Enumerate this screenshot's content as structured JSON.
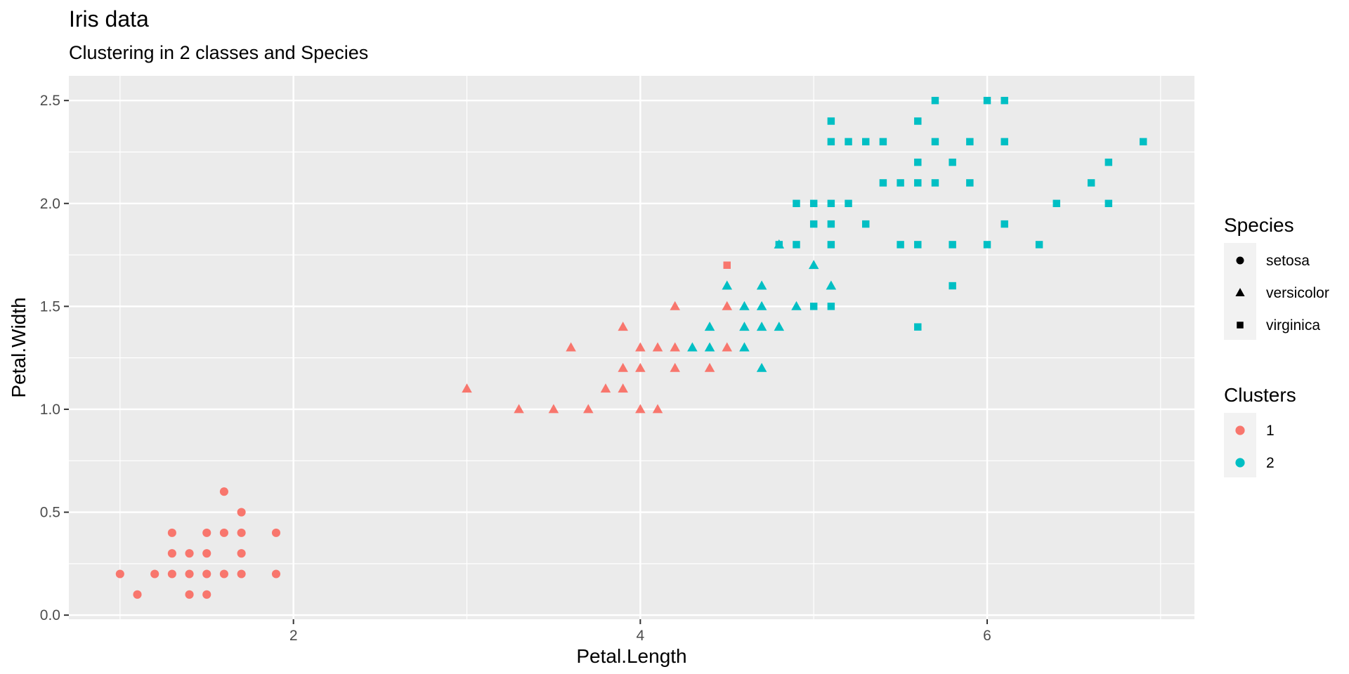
{
  "chart_data": {
    "type": "scatter",
    "title": "Iris data",
    "subtitle": "Clustering in 2 classes and Species",
    "xlabel": "Petal.Length",
    "ylabel": "Petal.Width",
    "xlim": [
      0.705,
      7.195
    ],
    "ylim": [
      -0.02,
      2.62
    ],
    "x_ticks": [
      2,
      4,
      6
    ],
    "x_tick_labels": [
      "2",
      "4",
      "6"
    ],
    "y_ticks": [
      0.0,
      0.5,
      1.0,
      1.5,
      2.0,
      2.5
    ],
    "y_tick_labels": [
      "0.0",
      "0.5",
      "1.0",
      "1.5",
      "2.0",
      "2.5"
    ],
    "grid": true,
    "legend_position": "right",
    "legends": [
      {
        "title": "Species",
        "kind": "shape",
        "entries": [
          {
            "label": "setosa",
            "shape": "circle"
          },
          {
            "label": "versicolor",
            "shape": "triangle"
          },
          {
            "label": "virginica",
            "shape": "square"
          }
        ]
      },
      {
        "title": "Clusters",
        "kind": "color",
        "entries": [
          {
            "label": "1",
            "color": "#F8766D"
          },
          {
            "label": "2",
            "color": "#00BFC4"
          }
        ]
      }
    ],
    "colors": {
      "1": "#F8766D",
      "2": "#00BFC4"
    },
    "point_fields": [
      "x",
      "y",
      "species",
      "cluster"
    ],
    "points": [
      [
        1.0,
        0.2,
        "setosa",
        "1"
      ],
      [
        1.1,
        0.1,
        "setosa",
        "1"
      ],
      [
        1.2,
        0.2,
        "setosa",
        "1"
      ],
      [
        1.3,
        0.2,
        "setosa",
        "1"
      ],
      [
        1.3,
        0.3,
        "setosa",
        "1"
      ],
      [
        1.3,
        0.4,
        "setosa",
        "1"
      ],
      [
        1.4,
        0.1,
        "setosa",
        "1"
      ],
      [
        1.4,
        0.2,
        "setosa",
        "1"
      ],
      [
        1.4,
        0.3,
        "setosa",
        "1"
      ],
      [
        1.5,
        0.1,
        "setosa",
        "1"
      ],
      [
        1.5,
        0.2,
        "setosa",
        "1"
      ],
      [
        1.5,
        0.3,
        "setosa",
        "1"
      ],
      [
        1.5,
        0.4,
        "setosa",
        "1"
      ],
      [
        1.6,
        0.2,
        "setosa",
        "1"
      ],
      [
        1.6,
        0.4,
        "setosa",
        "1"
      ],
      [
        1.6,
        0.6,
        "setosa",
        "1"
      ],
      [
        1.7,
        0.2,
        "setosa",
        "1"
      ],
      [
        1.7,
        0.3,
        "setosa",
        "1"
      ],
      [
        1.7,
        0.4,
        "setosa",
        "1"
      ],
      [
        1.7,
        0.5,
        "setosa",
        "1"
      ],
      [
        1.9,
        0.2,
        "setosa",
        "1"
      ],
      [
        1.9,
        0.4,
        "setosa",
        "1"
      ],
      [
        3.0,
        1.1,
        "versicolor",
        "1"
      ],
      [
        3.3,
        1.0,
        "versicolor",
        "1"
      ],
      [
        3.5,
        1.0,
        "versicolor",
        "1"
      ],
      [
        3.6,
        1.3,
        "versicolor",
        "1"
      ],
      [
        3.7,
        1.0,
        "versicolor",
        "1"
      ],
      [
        3.8,
        1.1,
        "versicolor",
        "1"
      ],
      [
        3.9,
        1.1,
        "versicolor",
        "1"
      ],
      [
        3.9,
        1.2,
        "versicolor",
        "1"
      ],
      [
        3.9,
        1.4,
        "versicolor",
        "1"
      ],
      [
        4.0,
        1.0,
        "versicolor",
        "1"
      ],
      [
        4.0,
        1.2,
        "versicolor",
        "1"
      ],
      [
        4.0,
        1.3,
        "versicolor",
        "1"
      ],
      [
        4.1,
        1.0,
        "versicolor",
        "1"
      ],
      [
        4.1,
        1.3,
        "versicolor",
        "1"
      ],
      [
        4.2,
        1.2,
        "versicolor",
        "1"
      ],
      [
        4.2,
        1.3,
        "versicolor",
        "1"
      ],
      [
        4.2,
        1.5,
        "versicolor",
        "1"
      ],
      [
        4.4,
        1.2,
        "versicolor",
        "1"
      ],
      [
        4.5,
        1.3,
        "versicolor",
        "1"
      ],
      [
        4.5,
        1.5,
        "versicolor",
        "1"
      ],
      [
        4.3,
        1.3,
        "versicolor",
        "2"
      ],
      [
        4.4,
        1.3,
        "versicolor",
        "2"
      ],
      [
        4.4,
        1.4,
        "versicolor",
        "2"
      ],
      [
        4.5,
        1.6,
        "versicolor",
        "2"
      ],
      [
        4.6,
        1.3,
        "versicolor",
        "2"
      ],
      [
        4.6,
        1.4,
        "versicolor",
        "2"
      ],
      [
        4.6,
        1.5,
        "versicolor",
        "2"
      ],
      [
        4.7,
        1.2,
        "versicolor",
        "2"
      ],
      [
        4.7,
        1.4,
        "versicolor",
        "2"
      ],
      [
        4.7,
        1.5,
        "versicolor",
        "2"
      ],
      [
        4.7,
        1.6,
        "versicolor",
        "2"
      ],
      [
        4.8,
        1.4,
        "versicolor",
        "2"
      ],
      [
        4.8,
        1.8,
        "versicolor",
        "2"
      ],
      [
        4.9,
        1.5,
        "versicolor",
        "2"
      ],
      [
        5.0,
        1.7,
        "versicolor",
        "2"
      ],
      [
        5.1,
        1.6,
        "versicolor",
        "2"
      ],
      [
        4.5,
        1.7,
        "virginica",
        "1"
      ],
      [
        4.8,
        1.8,
        "virginica",
        "2"
      ],
      [
        4.9,
        1.8,
        "virginica",
        "2"
      ],
      [
        4.9,
        2.0,
        "virginica",
        "2"
      ],
      [
        5.0,
        1.5,
        "virginica",
        "2"
      ],
      [
        5.0,
        1.9,
        "virginica",
        "2"
      ],
      [
        5.0,
        2.0,
        "virginica",
        "2"
      ],
      [
        5.1,
        1.5,
        "virginica",
        "2"
      ],
      [
        5.1,
        1.8,
        "virginica",
        "2"
      ],
      [
        5.1,
        1.9,
        "virginica",
        "2"
      ],
      [
        5.1,
        2.0,
        "virginica",
        "2"
      ],
      [
        5.1,
        2.3,
        "virginica",
        "2"
      ],
      [
        5.1,
        2.4,
        "virginica",
        "2"
      ],
      [
        5.2,
        2.0,
        "virginica",
        "2"
      ],
      [
        5.2,
        2.3,
        "virginica",
        "2"
      ],
      [
        5.3,
        1.9,
        "virginica",
        "2"
      ],
      [
        5.3,
        2.3,
        "virginica",
        "2"
      ],
      [
        5.4,
        2.1,
        "virginica",
        "2"
      ],
      [
        5.4,
        2.3,
        "virginica",
        "2"
      ],
      [
        5.5,
        1.8,
        "virginica",
        "2"
      ],
      [
        5.5,
        2.1,
        "virginica",
        "2"
      ],
      [
        5.6,
        1.4,
        "virginica",
        "2"
      ],
      [
        5.6,
        1.8,
        "virginica",
        "2"
      ],
      [
        5.6,
        2.1,
        "virginica",
        "2"
      ],
      [
        5.6,
        2.2,
        "virginica",
        "2"
      ],
      [
        5.6,
        2.4,
        "virginica",
        "2"
      ],
      [
        5.7,
        2.1,
        "virginica",
        "2"
      ],
      [
        5.7,
        2.3,
        "virginica",
        "2"
      ],
      [
        5.7,
        2.5,
        "virginica",
        "2"
      ],
      [
        5.8,
        1.6,
        "virginica",
        "2"
      ],
      [
        5.8,
        1.8,
        "virginica",
        "2"
      ],
      [
        5.8,
        2.2,
        "virginica",
        "2"
      ],
      [
        5.9,
        2.1,
        "virginica",
        "2"
      ],
      [
        5.9,
        2.3,
        "virginica",
        "2"
      ],
      [
        6.0,
        1.8,
        "virginica",
        "2"
      ],
      [
        6.0,
        2.5,
        "virginica",
        "2"
      ],
      [
        6.1,
        1.9,
        "virginica",
        "2"
      ],
      [
        6.1,
        2.3,
        "virginica",
        "2"
      ],
      [
        6.1,
        2.5,
        "virginica",
        "2"
      ],
      [
        6.3,
        1.8,
        "virginica",
        "2"
      ],
      [
        6.4,
        2.0,
        "virginica",
        "2"
      ],
      [
        6.6,
        2.1,
        "virginica",
        "2"
      ],
      [
        6.7,
        2.0,
        "virginica",
        "2"
      ],
      [
        6.7,
        2.2,
        "virginica",
        "2"
      ],
      [
        6.9,
        2.3,
        "virginica",
        "2"
      ]
    ]
  }
}
